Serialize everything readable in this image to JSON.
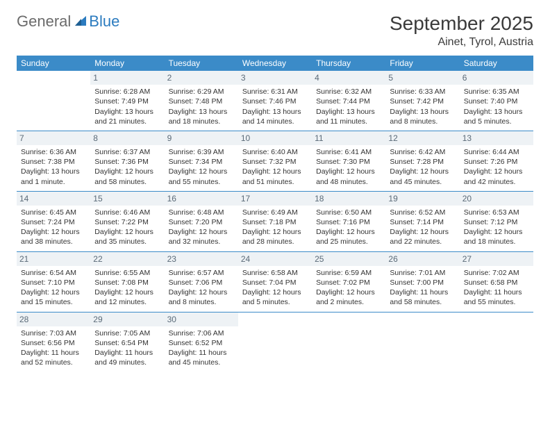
{
  "brand": {
    "part1": "General",
    "part2": "Blue"
  },
  "header": {
    "month": "September 2025",
    "location": "Ainet, Tyrol, Austria"
  },
  "colors": {
    "header_bg": "#3b8bc8",
    "header_fg": "#ffffff",
    "daynum_bg": "#eef2f5",
    "rule": "#3b8bc8"
  },
  "weekdays": [
    "Sunday",
    "Monday",
    "Tuesday",
    "Wednesday",
    "Thursday",
    "Friday",
    "Saturday"
  ],
  "weeks": [
    [
      {
        "n": "",
        "sr": "",
        "ss": "",
        "d1": "",
        "d2": ""
      },
      {
        "n": "1",
        "sr": "Sunrise: 6:28 AM",
        "ss": "Sunset: 7:49 PM",
        "d1": "Daylight: 13 hours",
        "d2": "and 21 minutes."
      },
      {
        "n": "2",
        "sr": "Sunrise: 6:29 AM",
        "ss": "Sunset: 7:48 PM",
        "d1": "Daylight: 13 hours",
        "d2": "and 18 minutes."
      },
      {
        "n": "3",
        "sr": "Sunrise: 6:31 AM",
        "ss": "Sunset: 7:46 PM",
        "d1": "Daylight: 13 hours",
        "d2": "and 14 minutes."
      },
      {
        "n": "4",
        "sr": "Sunrise: 6:32 AM",
        "ss": "Sunset: 7:44 PM",
        "d1": "Daylight: 13 hours",
        "d2": "and 11 minutes."
      },
      {
        "n": "5",
        "sr": "Sunrise: 6:33 AM",
        "ss": "Sunset: 7:42 PM",
        "d1": "Daylight: 13 hours",
        "d2": "and 8 minutes."
      },
      {
        "n": "6",
        "sr": "Sunrise: 6:35 AM",
        "ss": "Sunset: 7:40 PM",
        "d1": "Daylight: 13 hours",
        "d2": "and 5 minutes."
      }
    ],
    [
      {
        "n": "7",
        "sr": "Sunrise: 6:36 AM",
        "ss": "Sunset: 7:38 PM",
        "d1": "Daylight: 13 hours",
        "d2": "and 1 minute."
      },
      {
        "n": "8",
        "sr": "Sunrise: 6:37 AM",
        "ss": "Sunset: 7:36 PM",
        "d1": "Daylight: 12 hours",
        "d2": "and 58 minutes."
      },
      {
        "n": "9",
        "sr": "Sunrise: 6:39 AM",
        "ss": "Sunset: 7:34 PM",
        "d1": "Daylight: 12 hours",
        "d2": "and 55 minutes."
      },
      {
        "n": "10",
        "sr": "Sunrise: 6:40 AM",
        "ss": "Sunset: 7:32 PM",
        "d1": "Daylight: 12 hours",
        "d2": "and 51 minutes."
      },
      {
        "n": "11",
        "sr": "Sunrise: 6:41 AM",
        "ss": "Sunset: 7:30 PM",
        "d1": "Daylight: 12 hours",
        "d2": "and 48 minutes."
      },
      {
        "n": "12",
        "sr": "Sunrise: 6:42 AM",
        "ss": "Sunset: 7:28 PM",
        "d1": "Daylight: 12 hours",
        "d2": "and 45 minutes."
      },
      {
        "n": "13",
        "sr": "Sunrise: 6:44 AM",
        "ss": "Sunset: 7:26 PM",
        "d1": "Daylight: 12 hours",
        "d2": "and 42 minutes."
      }
    ],
    [
      {
        "n": "14",
        "sr": "Sunrise: 6:45 AM",
        "ss": "Sunset: 7:24 PM",
        "d1": "Daylight: 12 hours",
        "d2": "and 38 minutes."
      },
      {
        "n": "15",
        "sr": "Sunrise: 6:46 AM",
        "ss": "Sunset: 7:22 PM",
        "d1": "Daylight: 12 hours",
        "d2": "and 35 minutes."
      },
      {
        "n": "16",
        "sr": "Sunrise: 6:48 AM",
        "ss": "Sunset: 7:20 PM",
        "d1": "Daylight: 12 hours",
        "d2": "and 32 minutes."
      },
      {
        "n": "17",
        "sr": "Sunrise: 6:49 AM",
        "ss": "Sunset: 7:18 PM",
        "d1": "Daylight: 12 hours",
        "d2": "and 28 minutes."
      },
      {
        "n": "18",
        "sr": "Sunrise: 6:50 AM",
        "ss": "Sunset: 7:16 PM",
        "d1": "Daylight: 12 hours",
        "d2": "and 25 minutes."
      },
      {
        "n": "19",
        "sr": "Sunrise: 6:52 AM",
        "ss": "Sunset: 7:14 PM",
        "d1": "Daylight: 12 hours",
        "d2": "and 22 minutes."
      },
      {
        "n": "20",
        "sr": "Sunrise: 6:53 AM",
        "ss": "Sunset: 7:12 PM",
        "d1": "Daylight: 12 hours",
        "d2": "and 18 minutes."
      }
    ],
    [
      {
        "n": "21",
        "sr": "Sunrise: 6:54 AM",
        "ss": "Sunset: 7:10 PM",
        "d1": "Daylight: 12 hours",
        "d2": "and 15 minutes."
      },
      {
        "n": "22",
        "sr": "Sunrise: 6:55 AM",
        "ss": "Sunset: 7:08 PM",
        "d1": "Daylight: 12 hours",
        "d2": "and 12 minutes."
      },
      {
        "n": "23",
        "sr": "Sunrise: 6:57 AM",
        "ss": "Sunset: 7:06 PM",
        "d1": "Daylight: 12 hours",
        "d2": "and 8 minutes."
      },
      {
        "n": "24",
        "sr": "Sunrise: 6:58 AM",
        "ss": "Sunset: 7:04 PM",
        "d1": "Daylight: 12 hours",
        "d2": "and 5 minutes."
      },
      {
        "n": "25",
        "sr": "Sunrise: 6:59 AM",
        "ss": "Sunset: 7:02 PM",
        "d1": "Daylight: 12 hours",
        "d2": "and 2 minutes."
      },
      {
        "n": "26",
        "sr": "Sunrise: 7:01 AM",
        "ss": "Sunset: 7:00 PM",
        "d1": "Daylight: 11 hours",
        "d2": "and 58 minutes."
      },
      {
        "n": "27",
        "sr": "Sunrise: 7:02 AM",
        "ss": "Sunset: 6:58 PM",
        "d1": "Daylight: 11 hours",
        "d2": "and 55 minutes."
      }
    ],
    [
      {
        "n": "28",
        "sr": "Sunrise: 7:03 AM",
        "ss": "Sunset: 6:56 PM",
        "d1": "Daylight: 11 hours",
        "d2": "and 52 minutes."
      },
      {
        "n": "29",
        "sr": "Sunrise: 7:05 AM",
        "ss": "Sunset: 6:54 PM",
        "d1": "Daylight: 11 hours",
        "d2": "and 49 minutes."
      },
      {
        "n": "30",
        "sr": "Sunrise: 7:06 AM",
        "ss": "Sunset: 6:52 PM",
        "d1": "Daylight: 11 hours",
        "d2": "and 45 minutes."
      },
      {
        "n": "",
        "sr": "",
        "ss": "",
        "d1": "",
        "d2": ""
      },
      {
        "n": "",
        "sr": "",
        "ss": "",
        "d1": "",
        "d2": ""
      },
      {
        "n": "",
        "sr": "",
        "ss": "",
        "d1": "",
        "d2": ""
      },
      {
        "n": "",
        "sr": "",
        "ss": "",
        "d1": "",
        "d2": ""
      }
    ]
  ]
}
